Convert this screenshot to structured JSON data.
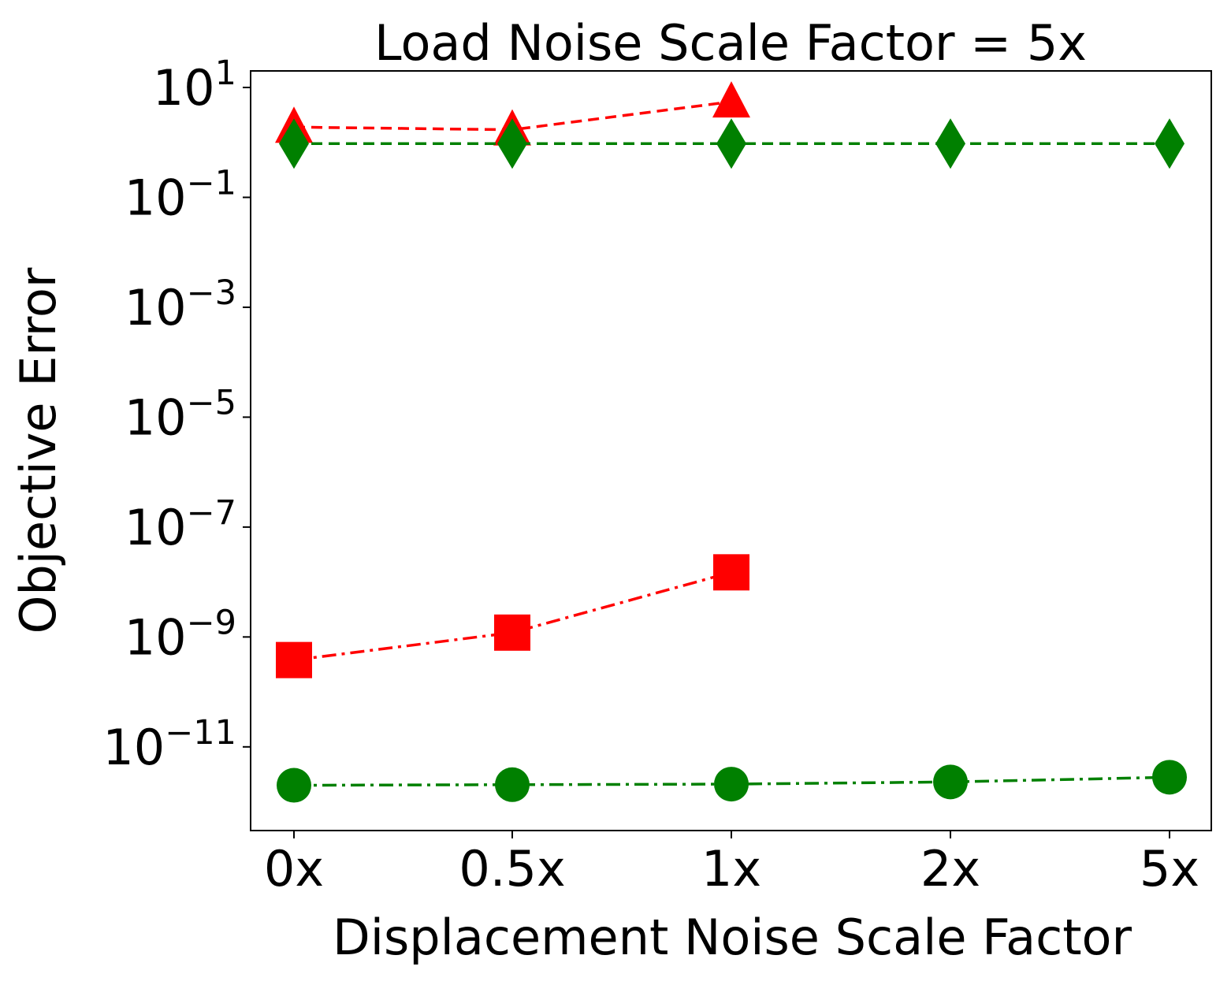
{
  "chart_data": {
    "type": "line",
    "title": "Load Noise Scale Factor = 5x",
    "xlabel": "Displacement Noise Scale Factor",
    "ylabel": "Objective Error",
    "yscale": "log",
    "categories": [
      "0x",
      "0.5x",
      "1x",
      "2x",
      "5x"
    ],
    "ylim": [
      3e-13,
      20
    ],
    "yticks": [
      {
        "value": 10,
        "base": "10",
        "exp": "1"
      },
      {
        "value": 0.1,
        "base": "10",
        "exp": "−1"
      },
      {
        "value": 0.001,
        "base": "10",
        "exp": "−3"
      },
      {
        "value": 1e-05,
        "base": "10",
        "exp": "−5"
      },
      {
        "value": 1e-07,
        "base": "10",
        "exp": "−7"
      },
      {
        "value": 1e-09,
        "base": "10",
        "exp": "−9"
      },
      {
        "value": 1e-11,
        "base": "10",
        "exp": "−11"
      }
    ],
    "grid": false,
    "series": [
      {
        "name": "red-triangle",
        "color": "#ff0000",
        "marker": "triangle",
        "dash": "dashed",
        "values": [
          1.9,
          1.7,
          5.5,
          null,
          null
        ]
      },
      {
        "name": "green-diamond",
        "color": "#008000",
        "marker": "diamond",
        "dash": "dashed",
        "values": [
          0.95,
          0.95,
          0.95,
          0.95,
          0.95
        ]
      },
      {
        "name": "red-square",
        "color": "#ff0000",
        "marker": "square",
        "dash": "dashdot",
        "values": [
          3.8e-10,
          1.2e-09,
          1.5e-08,
          null,
          null
        ]
      },
      {
        "name": "green-circle",
        "color": "#008000",
        "marker": "circle",
        "dash": "dashdot",
        "values": [
          2e-12,
          2.05e-12,
          2.1e-12,
          2.3e-12,
          2.8e-12
        ]
      }
    ]
  }
}
